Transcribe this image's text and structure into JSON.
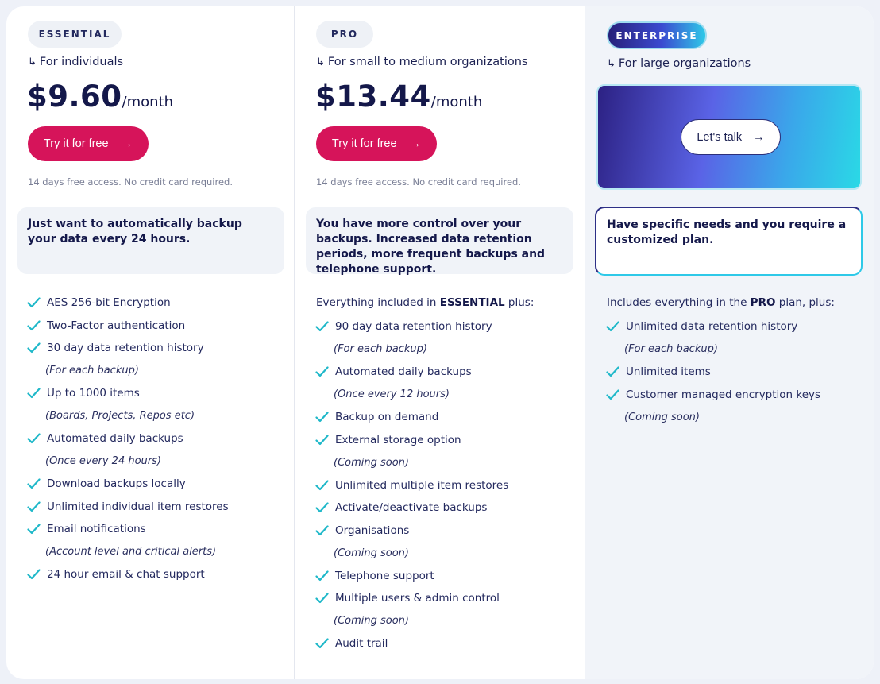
{
  "plans": [
    {
      "badge": "ESSENTIAL",
      "audience": "For individuals",
      "price": "$9.60",
      "period": "/month",
      "cta": "Try it for free",
      "note": "14 days free access. No credit card required.",
      "description": "Just want to automatically backup your data every 24 hours.",
      "features": [
        {
          "text": "AES 256-bit Encryption",
          "sub": false
        },
        {
          "text": "Two-Factor authentication",
          "sub": false
        },
        {
          "text": "30 day data retention history",
          "sub": false
        },
        {
          "text": "(For each backup)",
          "sub": true
        },
        {
          "text": "Up to 1000 items",
          "sub": false
        },
        {
          "text": "(Boards, Projects, Repos etc)",
          "sub": true
        },
        {
          "text": "Automated daily backups",
          "sub": false
        },
        {
          "text": "(Once every 24 hours)",
          "sub": true
        },
        {
          "text": "Download backups locally",
          "sub": false
        },
        {
          "text": "Unlimited individual item restores",
          "sub": false
        },
        {
          "text": "Email notifications",
          "sub": false
        },
        {
          "text": "(Account level and critical alerts)",
          "sub": true
        },
        {
          "text": "24 hour email & chat support",
          "sub": false
        }
      ]
    },
    {
      "badge": "PRO",
      "audience": "For small to medium organizations",
      "price": "$13.44",
      "period": "/month",
      "cta": "Try it for free",
      "note": "14 days free access. No credit card required.",
      "description": "You have more control over your backups. Increased data retention periods, more frequent backups and telephone support.",
      "intro_prefix": "Everything included in ",
      "intro_plan": "ESSENTIAL",
      "intro_suffix": " plus:",
      "features": [
        {
          "text": "90 day data retention history",
          "sub": false
        },
        {
          "text": "(For each backup)",
          "sub": true
        },
        {
          "text": "Automated daily backups",
          "sub": false
        },
        {
          "text": "(Once every 12 hours)",
          "sub": true
        },
        {
          "text": "Backup on demand",
          "sub": false
        },
        {
          "text": "External storage option",
          "sub": false
        },
        {
          "text": "(Coming soon)",
          "sub": true
        },
        {
          "text": "Unlimited multiple item restores",
          "sub": false
        },
        {
          "text": "Activate/deactivate backups",
          "sub": false
        },
        {
          "text": "Organisations",
          "sub": false
        },
        {
          "text": "(Coming soon)",
          "sub": true
        },
        {
          "text": "Telephone support",
          "sub": false
        },
        {
          "text": "Multiple users & admin control",
          "sub": false
        },
        {
          "text": "(Coming soon)",
          "sub": true
        },
        {
          "text": "Audit trail",
          "sub": false
        }
      ]
    },
    {
      "badge": "ENTERPRISE",
      "audience": "For large organizations",
      "cta": "Let's talk",
      "description": "Have specific needs and you require a customized plan.",
      "intro_prefix": "Includes everything in the ",
      "intro_plan": "PRO",
      "intro_suffix": " plan, plus:",
      "features": [
        {
          "text": "Unlimited data retention history",
          "sub": false
        },
        {
          "text": "(For each backup)",
          "sub": true
        },
        {
          "text": "Unlimited items",
          "sub": false
        },
        {
          "text": "Customer managed encryption keys",
          "sub": false
        },
        {
          "text": "(Coming soon)",
          "sub": true
        }
      ]
    }
  ],
  "icons": {
    "audience": "return-arrow-icon",
    "cta": "arrow-right-icon",
    "feature": "check-icon"
  },
  "colors": {
    "cta": "#d6145a",
    "check": "#1fb8c9",
    "heading": "#14184a"
  }
}
